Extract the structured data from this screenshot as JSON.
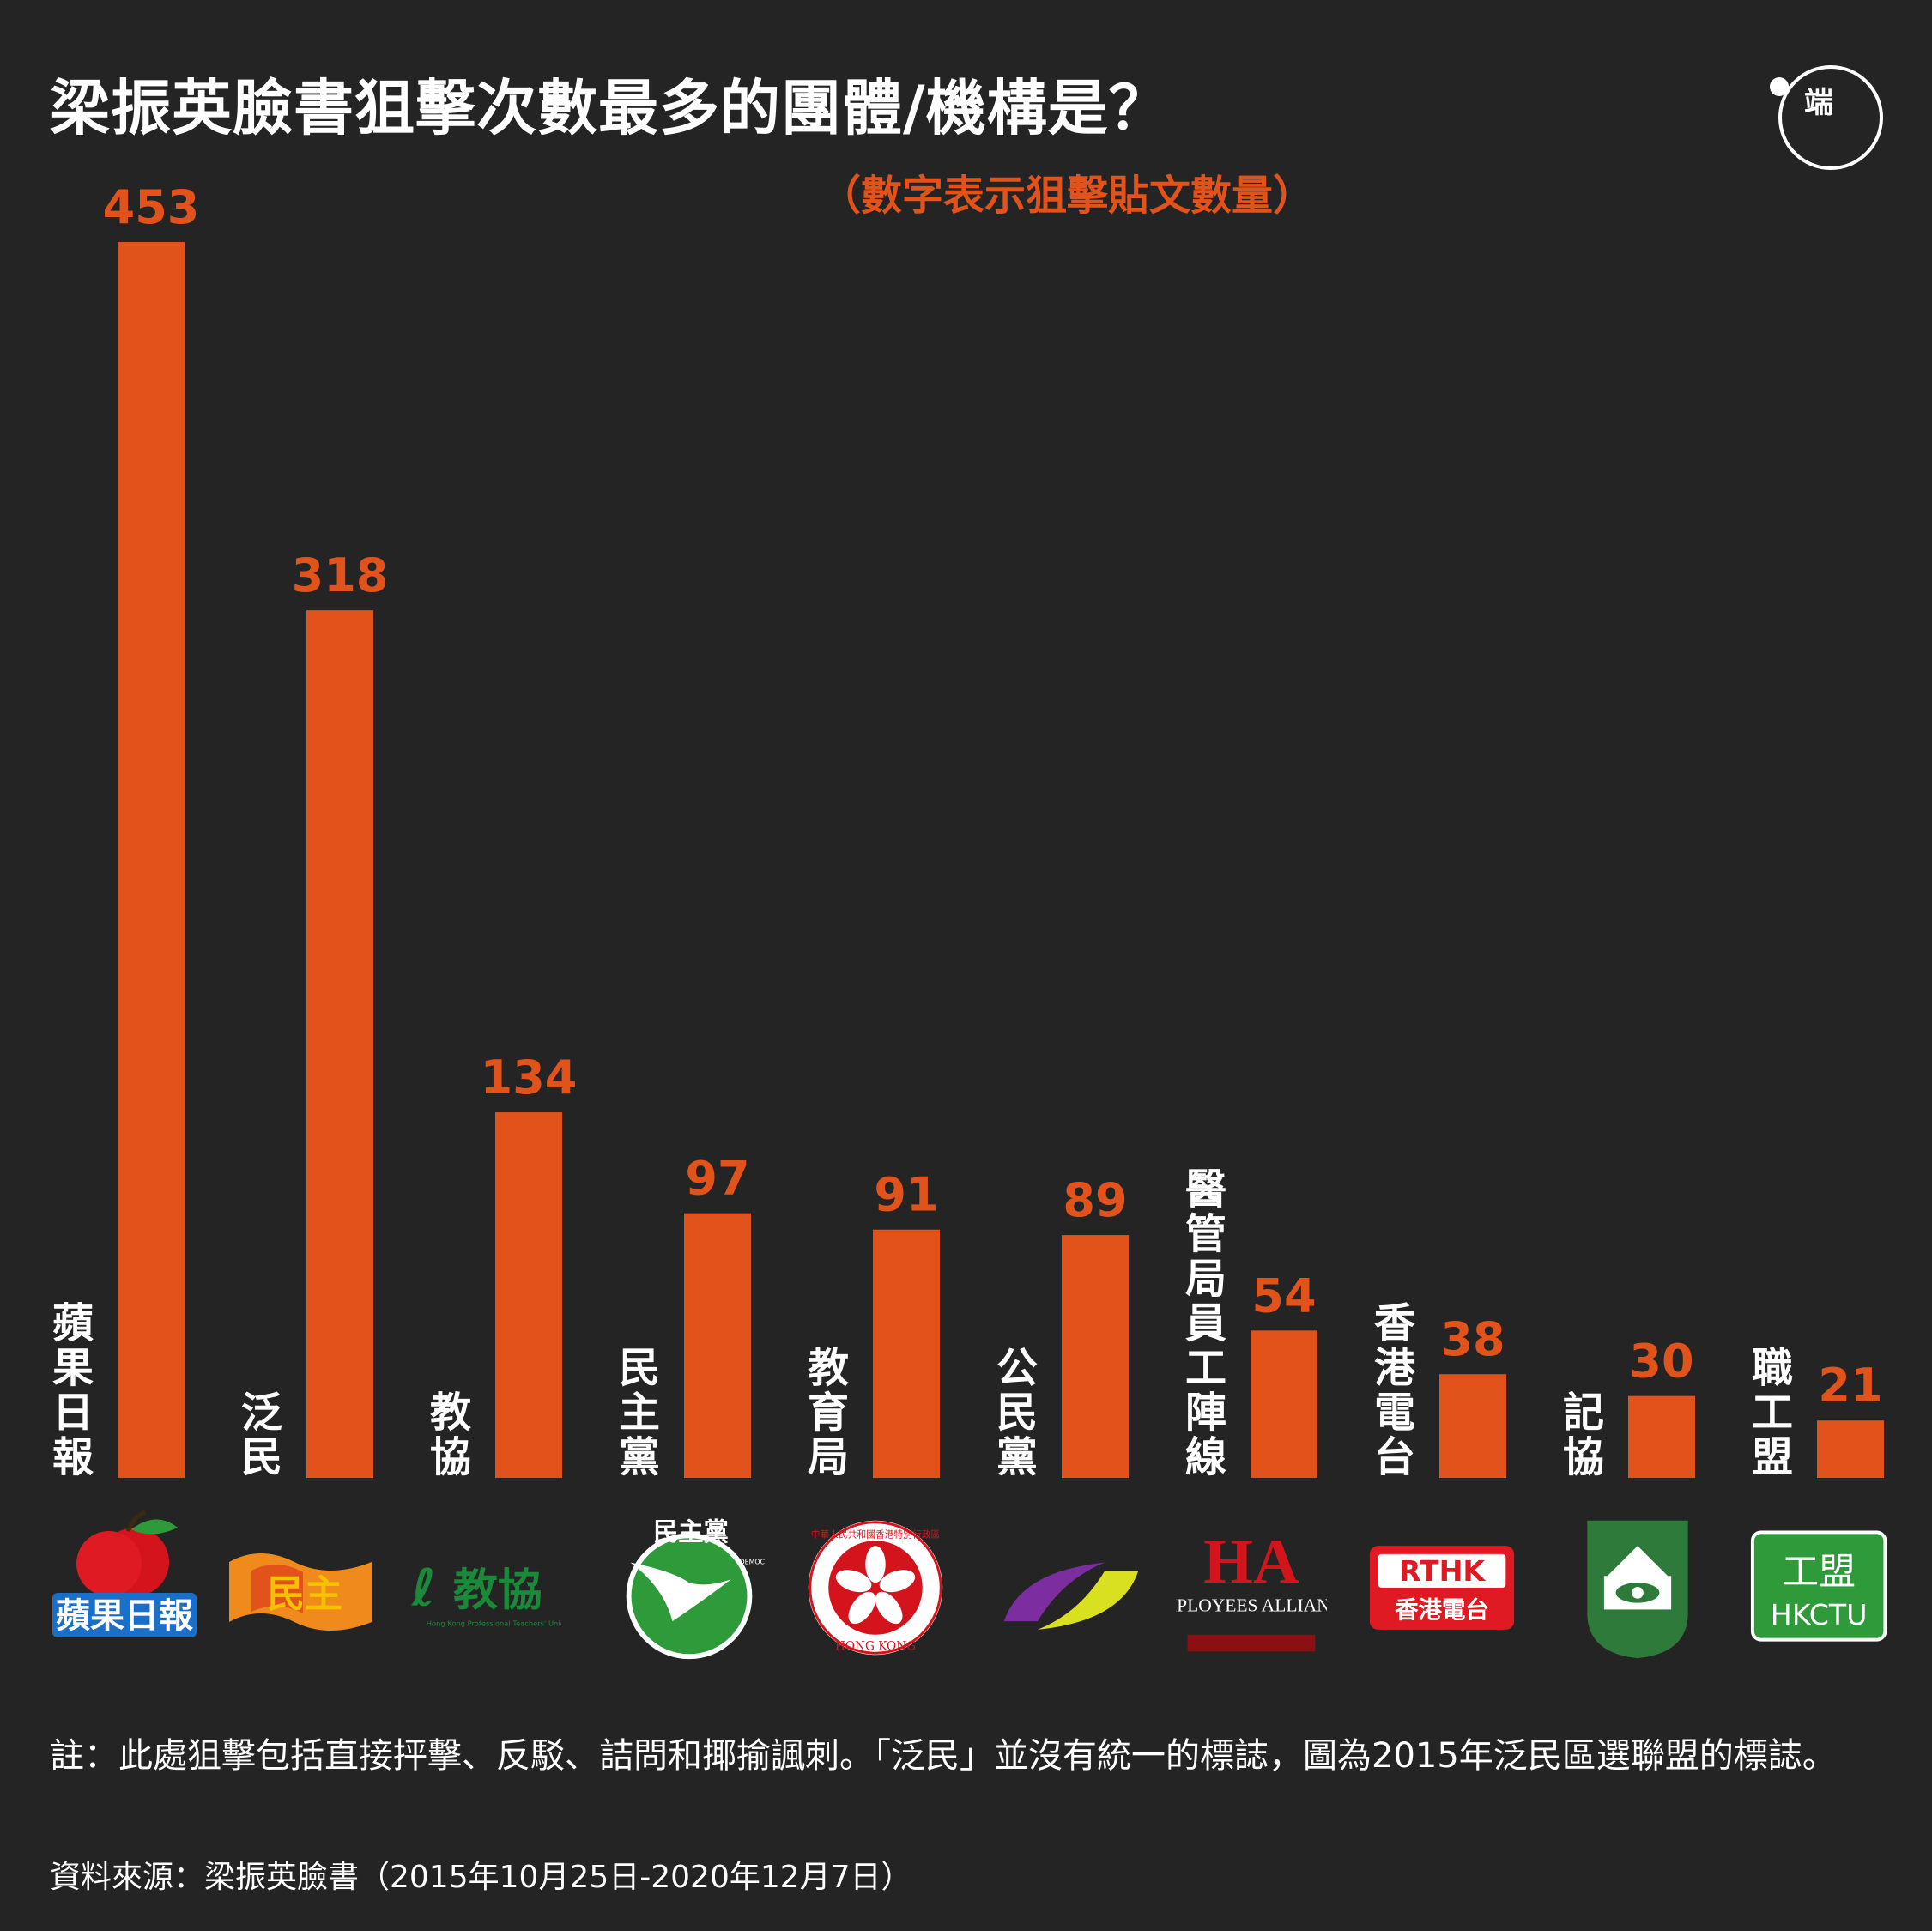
{
  "title": "梁振英臉書狙擊次數最多的團體/機構是？",
  "subtitle": "（數字表示狙擊貼文數量）",
  "brand_logo": {
    "text": "端",
    "icon": "initium-logo-icon"
  },
  "chart_data": {
    "type": "bar",
    "title": "梁振英臉書狙擊次數最多的團體/機構是？",
    "subtitle": "（數字表示狙擊貼文數量）",
    "categories": [
      "蘋果日報",
      "泛民",
      "教協",
      "民主黨",
      "教育局",
      "公民黨",
      "醫管局員工陣線",
      "香港電台",
      "記協",
      "職工盟"
    ],
    "values": [
      453,
      318,
      134,
      97,
      91,
      89,
      54,
      38,
      30,
      21
    ],
    "ylim": [
      0,
      453
    ],
    "grid": false,
    "bar_color": "#e2531b",
    "data_labels": true,
    "xlabel": "",
    "ylabel": ""
  },
  "logos": [
    {
      "icon": "apple-daily-logo-icon",
      "text": "蘋果日報"
    },
    {
      "icon": "pan-democrats-logo-icon",
      "text": "民主"
    },
    {
      "icon": "hkptu-logo-icon",
      "text": "教協",
      "small": "Hong Kong Professional Teachers' Union"
    },
    {
      "icon": "democratic-party-logo-icon",
      "text": "民主黨",
      "small": "DEMOCRATIC PARTY"
    },
    {
      "icon": "hksar-emblem-icon",
      "text": "HONG KONG",
      "small": "中華人民共和國香港特別行政區"
    },
    {
      "icon": "civic-party-logo-icon"
    },
    {
      "icon": "ha-employees-alliance-logo-icon",
      "text": "HA",
      "small": "EMPLOYEES ALLIANCE"
    },
    {
      "icon": "rthk-logo-icon",
      "text": "RTHK",
      "small": "香港電台"
    },
    {
      "icon": "hkja-logo-icon"
    },
    {
      "icon": "hkctu-logo-icon",
      "text": "工盟",
      "small": "HKCTU"
    }
  ],
  "note": "註：此處狙擊包括直接抨擊、反駁、詰問和揶揄諷刺。「泛民」並沒有統一的標誌，圖為2015年泛民區選聯盟的標誌。",
  "source": "資料來源：梁振英臉書（2015年10月25日-2020年12月7日）",
  "colors": {
    "background": "#242424",
    "accent": "#e2531b",
    "text": "#ffffff"
  }
}
